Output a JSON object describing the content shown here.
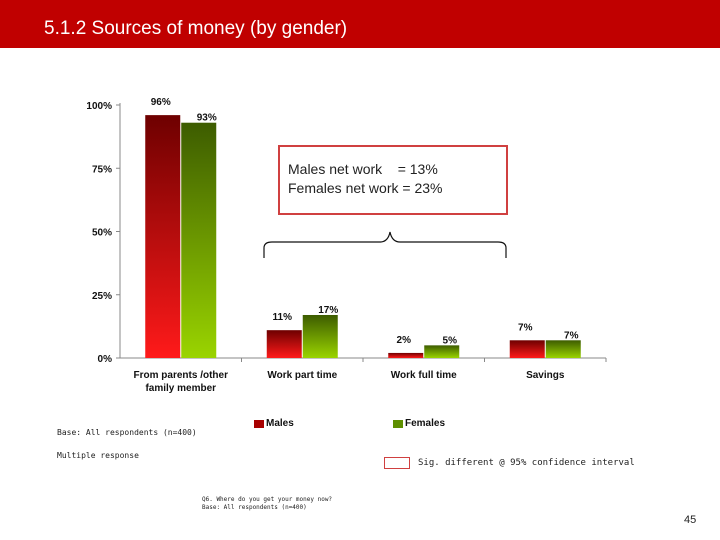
{
  "title": "5.1.2 Sources of money (by gender)",
  "callout": {
    "line1": "Males net work    = 13%",
    "line2": "Females net work = 23%"
  },
  "legend": {
    "males": "Males",
    "females": "Females"
  },
  "base_note": "Base: All respondents (n=400)",
  "multiple_response": "Multiple response",
  "sig_note": "Sig. different @ 95% confidence interval",
  "question": {
    "line1": "Q6. Where do you get your money now?",
    "line2": "Base: All respondents (n=400)"
  },
  "page_number": "45",
  "colors": {
    "males": "#a80000",
    "females": "#5e8f00",
    "title_bar": "#c00000",
    "highlight": "#d04040"
  },
  "chart_data": {
    "type": "bar",
    "categories": [
      "From parents /other family member",
      "Work part time",
      "Work full time",
      "Savings"
    ],
    "category_lines": [
      [
        "From parents /other",
        "family member"
      ],
      [
        "Work part time"
      ],
      [
        "Work full time"
      ],
      [
        "Savings"
      ]
    ],
    "series": [
      {
        "name": "Males",
        "values": [
          96,
          11,
          2,
          7
        ]
      },
      {
        "name": "Females",
        "values": [
          93,
          17,
          5,
          7
        ]
      }
    ],
    "value_labels": [
      [
        "96%",
        "11%",
        "2%",
        "7%"
      ],
      [
        "93%",
        "17%",
        "5%",
        "7%"
      ]
    ],
    "yticks": [
      "0%",
      "25%",
      "50%",
      "75%",
      "100%"
    ],
    "ytick_values": [
      0,
      25,
      50,
      75,
      100
    ],
    "ylim": [
      0,
      100
    ],
    "legend_position": "bottom"
  }
}
